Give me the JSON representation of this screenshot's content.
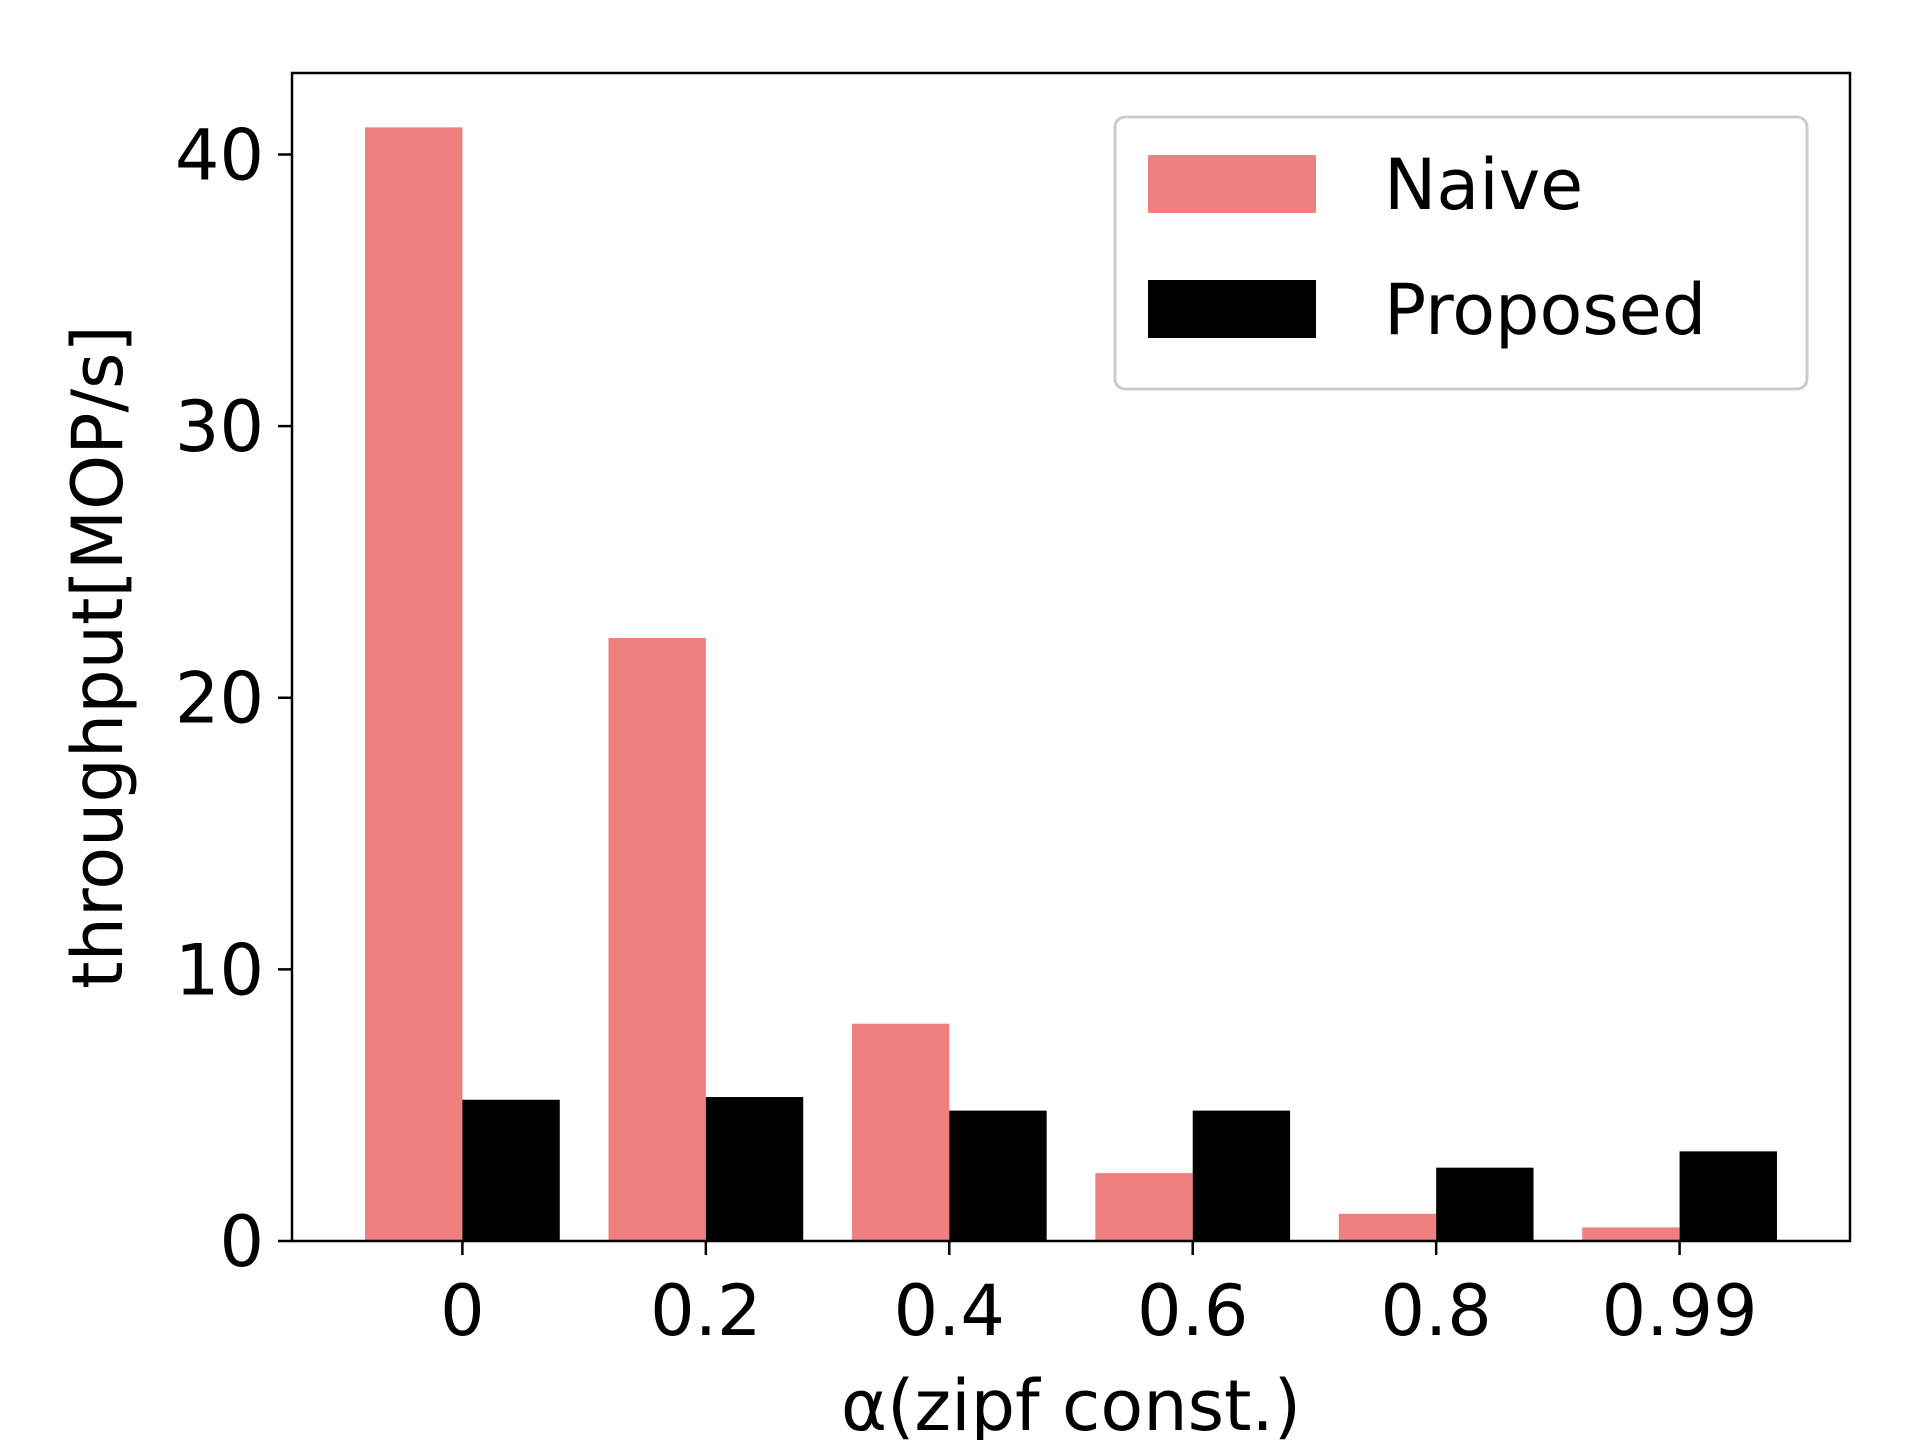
{
  "chart_data": {
    "type": "bar",
    "categories": [
      "0",
      "0.2",
      "0.4",
      "0.6",
      "0.8",
      "0.99"
    ],
    "series": [
      {
        "name": "Naive",
        "values": [
          41.0,
          22.2,
          8.0,
          2.5,
          1.0,
          0.5
        ],
        "color": "#f08080"
      },
      {
        "name": "Proposed",
        "values": [
          5.2,
          5.3,
          4.8,
          4.8,
          2.7,
          3.3
        ],
        "color": "#000000"
      }
    ],
    "xlabel": "α(zipf const.)",
    "ylabel": "throughput[MOP/s]",
    "yticks": [
      "0",
      "10",
      "20",
      "30",
      "40"
    ],
    "ylim": [
      0,
      43
    ],
    "grid": false,
    "legend": "top-right"
  }
}
